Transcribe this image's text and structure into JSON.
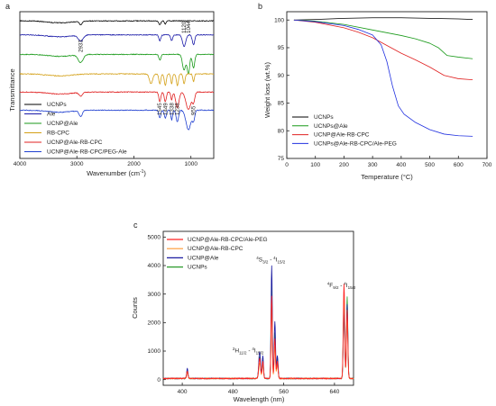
{
  "panels": {
    "a": {
      "letter": "a"
    },
    "b": {
      "letter": "b"
    },
    "c": {
      "letter": "c"
    }
  },
  "chart_data": [
    {
      "id": "a",
      "type": "line",
      "title": "",
      "xlabel": "Wavenumber (cm",
      "xlabel_sup": "-1",
      "xlabel_tail": ")",
      "ylabel": "Transmittance",
      "xlim": [
        4000,
        600
      ],
      "xticks": [
        "4000",
        "3000",
        "2000",
        "1000"
      ],
      "xtick_values": [
        4000,
        3000,
        2000,
        1000
      ],
      "legend_position": "bottom-left",
      "annotations": [
        {
          "label": "2933",
          "x": 2933
        },
        {
          "label": "1545",
          "x": 1545
        },
        {
          "label": "1449",
          "x": 1449
        },
        {
          "label": "1338",
          "x": 1338
        },
        {
          "label": "1238",
          "x": 1238
        },
        {
          "label": "1120",
          "x": 1120
        },
        {
          "label": "1044",
          "x": 1044
        },
        {
          "label": "955",
          "x": 955
        }
      ],
      "series": [
        {
          "name": "UCNPs",
          "color": "#000000",
          "baseline": 0.04,
          "bands": [
            [
              2933,
              0.02,
              30
            ],
            [
              1545,
              0.02,
              25
            ],
            [
              1449,
              0.015,
              20
            ]
          ]
        },
        {
          "name": "Ale",
          "color": "#1a1aa8",
          "baseline": 0.14,
          "bands": [
            [
              2933,
              0.03,
              60
            ],
            [
              1545,
              0.03,
              25
            ],
            [
              1338,
              0.03,
              25
            ],
            [
              1120,
              0.06,
              40
            ],
            [
              955,
              0.05,
              30
            ]
          ]
        },
        {
          "name": "UCNP@Ale",
          "color": "#1a9a1a",
          "baseline": 0.28,
          "bands": [
            [
              2933,
              0.04,
              60
            ],
            [
              1545,
              0.03,
              25
            ],
            [
              1120,
              0.08,
              40
            ],
            [
              1044,
              0.1,
              30
            ],
            [
              955,
              0.07,
              30
            ]
          ]
        },
        {
          "name": "RB-CPC",
          "color": "#d4a017",
          "baseline": 0.42,
          "bands": [
            [
              1700,
              0.05,
              40
            ],
            [
              1545,
              0.05,
              25
            ],
            [
              1449,
              0.06,
              25
            ],
            [
              1338,
              0.05,
              20
            ],
            [
              1238,
              0.06,
              25
            ],
            [
              1120,
              0.05,
              25
            ],
            [
              955,
              0.04,
              20
            ]
          ]
        },
        {
          "name": "UCNP@Ale-RB-CPC",
          "color": "#e02020",
          "baseline": 0.55,
          "bands": [
            [
              2933,
              0.02,
              40
            ],
            [
              1545,
              0.05,
              25
            ],
            [
              1449,
              0.05,
              25
            ],
            [
              1338,
              0.04,
              20
            ],
            [
              1238,
              0.08,
              40
            ],
            [
              1044,
              0.09,
              60
            ],
            [
              955,
              0.05,
              30
            ]
          ]
        },
        {
          "name": "UCNP@Ale-RB-CPC/PEG-Ale",
          "color": "#2040d0",
          "baseline": 0.68,
          "bands": [
            [
              2933,
              0.03,
              40
            ],
            [
              1545,
              0.04,
              25
            ],
            [
              1449,
              0.04,
              25
            ],
            [
              1338,
              0.05,
              20
            ],
            [
              1238,
              0.06,
              30
            ],
            [
              1044,
              0.1,
              60
            ],
            [
              955,
              0.05,
              30
            ]
          ]
        }
      ]
    },
    {
      "id": "b",
      "type": "line",
      "title": "",
      "xlabel": "Temperature (°C)",
      "ylabel": "Weight loss (wt.%)",
      "xlim": [
        0,
        700
      ],
      "ylim": [
        75,
        101.5
      ],
      "xticks": [
        0,
        100,
        200,
        300,
        400,
        500,
        600,
        700
      ],
      "yticks": [
        75,
        80,
        85,
        90,
        95,
        100
      ],
      "legend_position": "bottom-left",
      "series": [
        {
          "name": "UCNPs",
          "color": "#000000",
          "x": [
            25,
            100,
            200,
            300,
            400,
            500,
            600,
            650
          ],
          "y": [
            100,
            100.1,
            100.3,
            100.4,
            100.4,
            100.3,
            100.2,
            100.1
          ]
        },
        {
          "name": "UCNPs@Ale",
          "color": "#1a9a1a",
          "x": [
            25,
            100,
            200,
            300,
            400,
            450,
            500,
            530,
            560,
            600,
            650
          ],
          "y": [
            100,
            99.8,
            99.2,
            98.2,
            97.2,
            96.6,
            95.8,
            95.0,
            93.6,
            93.3,
            93.0
          ]
        },
        {
          "name": "UCNP@Ale-RB-CPC",
          "color": "#e02020",
          "x": [
            25,
            100,
            200,
            250,
            300,
            350,
            400,
            450,
            500,
            550,
            600,
            650
          ],
          "y": [
            100,
            99.6,
            98.6,
            97.8,
            96.8,
            95.4,
            94.0,
            92.8,
            91.5,
            90.0,
            89.4,
            89.2
          ]
        },
        {
          "name": "UCNPs@Ale-RB-CPC/Ale-PEG",
          "color": "#2030e0",
          "x": [
            25,
            100,
            200,
            250,
            300,
            330,
            350,
            370,
            390,
            410,
            450,
            500,
            550,
            600,
            650
          ],
          "y": [
            100,
            99.7,
            99.0,
            98.3,
            97.3,
            95.5,
            92.5,
            88.0,
            84.5,
            83.0,
            81.5,
            80.2,
            79.4,
            79.1,
            79.0
          ]
        }
      ]
    },
    {
      "id": "c",
      "type": "line",
      "title": "",
      "xlabel": "Wavelength (nm)",
      "ylabel": "Counts",
      "xlim": [
        370,
        670
      ],
      "ylim": [
        -200,
        5200
      ],
      "xticks": [
        400,
        480,
        560,
        640
      ],
      "yticks": [
        0,
        1000,
        2000,
        3000,
        4000,
        5000
      ],
      "legend_position": "top-left",
      "annotations": [
        {
          "main": "H",
          "pre": "2",
          "sub": "11/2",
          "sep": " - ",
          "pre2": "4",
          "main2": "I",
          "sub2": "15/2",
          "x": 522,
          "y": 950
        },
        {
          "main": "S",
          "pre": "4",
          "sub": "3/2",
          "sep": " - ",
          "pre2": "4",
          "main2": "I",
          "sub2": "15/2",
          "x": 541,
          "y": 4150
        },
        {
          "main": "F",
          "pre": "4",
          "sub": "9/2",
          "sep": " - ",
          "pre2": "4",
          "main2": "I",
          "sub2": "15/2",
          "x": 654,
          "y": 3250
        }
      ],
      "series": [
        {
          "name": "UCNP@Ale-RB-CPC/Ale-PEG",
          "color": "#ff2020",
          "peaks": [
            [
              408,
              250,
              1.5
            ],
            [
              522,
              700,
              2.0
            ],
            [
              527,
              600,
              1.5
            ],
            [
              541,
              2900,
              1.4
            ],
            [
              546,
              1400,
              1.5
            ],
            [
              550,
              600,
              1.5
            ],
            [
              655,
              3300,
              1.6
            ],
            [
              660,
              2400,
              1.5
            ]
          ]
        },
        {
          "name": "UCNP@Ale-RB-CPC",
          "color": "#ff9933",
          "peaks": [
            [
              408,
              200,
              1.5
            ],
            [
              522,
              550,
              2.0
            ],
            [
              527,
              500,
              1.5
            ],
            [
              541,
              2400,
              1.4
            ],
            [
              546,
              1100,
              1.5
            ],
            [
              550,
              500,
              1.5
            ],
            [
              655,
              2900,
              1.6
            ],
            [
              660,
              2200,
              1.5
            ]
          ]
        },
        {
          "name": "UCNP@Ale",
          "color": "#1a1aa0",
          "peaks": [
            [
              408,
              350,
              1.5
            ],
            [
              522,
              950,
              2.0
            ],
            [
              527,
              800,
              1.5
            ],
            [
              541,
              3950,
              1.4
            ],
            [
              546,
              2000,
              1.5
            ],
            [
              550,
              800,
              1.5
            ],
            [
              655,
              2400,
              1.6
            ],
            [
              660,
              2600,
              1.5
            ]
          ]
        },
        {
          "name": "UCNPs",
          "color": "#2a9a2a",
          "peaks": [
            [
              408,
              280,
              1.5
            ],
            [
              522,
              750,
              2.0
            ],
            [
              527,
              650,
              1.5
            ],
            [
              541,
              3300,
              1.4
            ],
            [
              546,
              1600,
              1.5
            ],
            [
              550,
              700,
              1.5
            ],
            [
              655,
              2600,
              1.6
            ],
            [
              660,
              2850,
              1.5
            ]
          ]
        }
      ]
    }
  ]
}
